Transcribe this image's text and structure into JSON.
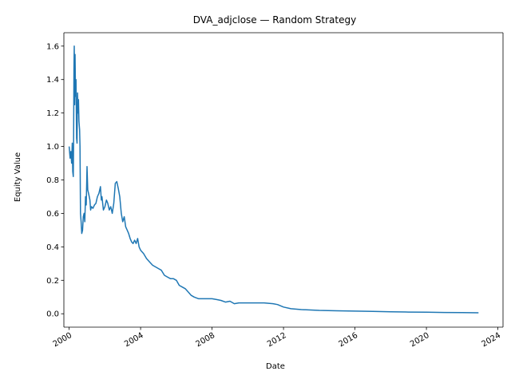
{
  "chart_data": {
    "type": "line",
    "title": "DVA_adjclose — Random Strategy",
    "xlabel": "Date",
    "ylabel": "Equity Value",
    "xlim": [
      "1999-09-15",
      "2024-04-15"
    ],
    "ylim": [
      -0.08,
      1.68
    ],
    "x_ticks": [
      "2000-01-01",
      "2004-01-01",
      "2008-01-01",
      "2012-01-01",
      "2016-01-01",
      "2020-01-01",
      "2024-01-01"
    ],
    "x_tick_labels": [
      "2000",
      "2004",
      "2008",
      "2012",
      "2016",
      "2020",
      "2024"
    ],
    "y_ticks": [
      0.0,
      0.2,
      0.4,
      0.6,
      0.8,
      1.0,
      1.2,
      1.4,
      1.6
    ],
    "y_tick_labels": [
      "0.0",
      "0.2",
      "0.4",
      "0.6",
      "0.8",
      "1.0",
      "1.2",
      "1.4",
      "1.6"
    ],
    "grid": false,
    "series": [
      {
        "color": "#1f77b4",
        "x": [
          "2000-01-01",
          "2000-01-20",
          "2000-02-05",
          "2000-02-20",
          "2000-03-05",
          "2000-03-15",
          "2000-03-25",
          "2000-04-01",
          "2000-04-08",
          "2000-04-15",
          "2000-04-22",
          "2000-05-01",
          "2000-05-10",
          "2000-05-20",
          "2000-06-01",
          "2000-06-10",
          "2000-06-20",
          "2000-07-01",
          "2000-07-10",
          "2000-07-20",
          "2000-08-01",
          "2000-08-10",
          "2000-08-20",
          "2000-09-01",
          "2000-09-15",
          "2000-10-01",
          "2000-10-15",
          "2000-11-01",
          "2000-11-15",
          "2000-12-01",
          "2000-12-15",
          "2001-01-01",
          "2001-01-15",
          "2001-02-01",
          "2001-02-15",
          "2001-03-01",
          "2001-03-15",
          "2001-04-01",
          "2001-05-01",
          "2001-06-01",
          "2001-07-01",
          "2001-08-01",
          "2001-09-01",
          "2001-10-01",
          "2001-10-20",
          "2001-11-01",
          "2001-12-01",
          "2002-01-01",
          "2002-02-01",
          "2002-03-01",
          "2002-04-01",
          "2002-05-01",
          "2002-06-01",
          "2002-07-01",
          "2002-08-01",
          "2002-09-01",
          "2002-10-01",
          "2002-11-01",
          "2002-12-01",
          "2003-01-01",
          "2003-02-01",
          "2003-03-01",
          "2003-04-01",
          "2003-05-01",
          "2003-06-01",
          "2003-07-01",
          "2003-08-01",
          "2003-09-01",
          "2003-10-01",
          "2003-11-01",
          "2003-12-01",
          "2004-01-01",
          "2004-03-01",
          "2004-05-01",
          "2004-07-01",
          "2004-09-01",
          "2004-11-01",
          "2005-01-01",
          "2005-03-01",
          "2005-05-01",
          "2005-07-01",
          "2005-09-01",
          "2005-11-01",
          "2006-01-01",
          "2006-03-01",
          "2006-05-01",
          "2006-07-01",
          "2006-09-01",
          "2006-11-01",
          "2007-01-01",
          "2007-04-01",
          "2007-07-01",
          "2007-10-01",
          "2008-01-01",
          "2008-04-01",
          "2008-07-01",
          "2008-10-01",
          "2009-01-01",
          "2009-04-01",
          "2009-07-01",
          "2009-10-01",
          "2010-01-01",
          "2010-06-01",
          "2010-12-01",
          "2011-06-01",
          "2011-09-01",
          "2012-01-01",
          "2012-06-01",
          "2013-01-01",
          "2014-01-01",
          "2015-01-01",
          "2016-01-01",
          "2017-01-01",
          "2018-01-01",
          "2019-01-01",
          "2020-01-01",
          "2021-01-01",
          "2022-01-01",
          "2022-12-01"
        ],
        "y": [
          1.0,
          0.93,
          0.97,
          0.9,
          1.02,
          0.85,
          0.82,
          1.05,
          1.45,
          1.6,
          1.25,
          1.55,
          1.3,
          1.4,
          1.05,
          1.02,
          1.32,
          1.2,
          1.28,
          1.15,
          1.1,
          1.0,
          0.6,
          0.55,
          0.48,
          0.5,
          0.58,
          0.6,
          0.55,
          0.7,
          0.65,
          0.88,
          0.74,
          0.72,
          0.7,
          0.68,
          0.62,
          0.64,
          0.63,
          0.65,
          0.66,
          0.7,
          0.72,
          0.76,
          0.68,
          0.7,
          0.62,
          0.64,
          0.68,
          0.66,
          0.62,
          0.64,
          0.6,
          0.66,
          0.78,
          0.79,
          0.75,
          0.7,
          0.6,
          0.55,
          0.58,
          0.52,
          0.5,
          0.48,
          0.45,
          0.43,
          0.42,
          0.44,
          0.42,
          0.45,
          0.4,
          0.38,
          0.36,
          0.33,
          0.31,
          0.29,
          0.28,
          0.27,
          0.26,
          0.23,
          0.22,
          0.21,
          0.21,
          0.2,
          0.17,
          0.16,
          0.15,
          0.13,
          0.11,
          0.1,
          0.09,
          0.09,
          0.09,
          0.09,
          0.085,
          0.08,
          0.07,
          0.075,
          0.06,
          0.065,
          0.065,
          0.065,
          0.065,
          0.065,
          0.06,
          0.055,
          0.04,
          0.03,
          0.025,
          0.02,
          0.018,
          0.016,
          0.014,
          0.012,
          0.01,
          0.009,
          0.008,
          0.007,
          0.006
        ]
      }
    ]
  }
}
